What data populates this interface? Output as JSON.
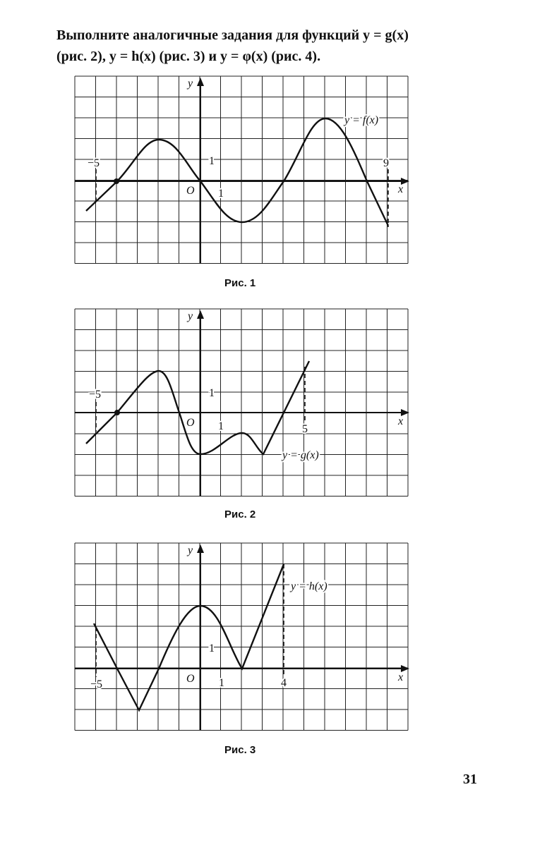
{
  "text": {
    "lines": [
      "Выполните аналогичные задания для функций y = g(x)",
      "(рис. 2), y = h(x) (рис. 3) и y = φ(x) (рис. 4)."
    ]
  },
  "figures": [
    {
      "labels": {
        "y": "y",
        "x": "x",
        "left": "−5",
        "one_y": "1",
        "origin": "O",
        "one_x": "1",
        "right": "9"
      },
      "function": "y = f(x)",
      "caption": "Рис. 1"
    },
    {
      "labels": {
        "y": "y",
        "x": "x",
        "left": "−5",
        "one_y": "1",
        "origin": "O",
        "one_x": "1",
        "right": "5"
      },
      "function": "y = g(x)",
      "caption": "Рис. 2"
    },
    {
      "labels": {
        "y": "y",
        "x": "x",
        "left": "−5",
        "one_y": "1",
        "origin": "O",
        "one_x": "1",
        "right": "4"
      },
      "function": "y = h(x)",
      "caption": "Рис. 3"
    }
  ],
  "page_number": "31"
}
